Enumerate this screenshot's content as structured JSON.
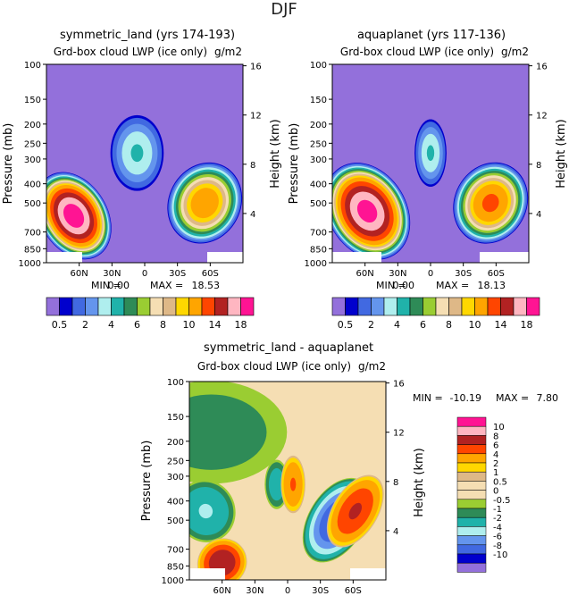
{
  "figure_title": "DJF",
  "colors": {
    "palette": [
      "#9370db",
      "#0000cd",
      "#4169e1",
      "#6495ed",
      "#afeeee",
      "#20b2aa",
      "#2e8b57",
      "#9acd32",
      "#f5deb3",
      "#deb887",
      "#ffd700",
      "#ffa500",
      "#ff4500",
      "#b22222",
      "#ffb6c1",
      "#ff1493"
    ],
    "diff_palette": [
      "#9370db",
      "#0000cd",
      "#4169e1",
      "#6495ed",
      "#afeeee",
      "#20b2aa",
      "#2e8b57",
      "#9acd32",
      "#f5deb3",
      "#deb887",
      "#ffd700",
      "#ffa500",
      "#ff4500",
      "#b22222",
      "#ffb6c1",
      "#ff1493"
    ],
    "land_bar": "#ffffff"
  },
  "chart_data": [
    {
      "id": "symmetric_land",
      "type": "heatmap",
      "title": "symmetric_land (yrs 174-193)",
      "subtitle": "Grd-box cloud LWP (ice only)",
      "units": "g/m2",
      "min_label": "MIN =",
      "min_value": "0.00",
      "max_label": "MAX =",
      "max_value": "18.53",
      "ylabel": "Pressure (mb)",
      "ylabel_right": "Height (km)",
      "pressure_ticks": [
        "100",
        "150",
        "200",
        "250",
        "300",
        "400",
        "500",
        "700",
        "850",
        "1000"
      ],
      "height_ticks": [
        "16",
        "12",
        "8",
        "4"
      ],
      "lat_ticks": [
        "60N",
        "30N",
        "0",
        "30S",
        "60S"
      ],
      "colorbar_levels": [
        "0.5",
        "2",
        "4",
        "6",
        "8",
        "10",
        "14",
        "18"
      ],
      "blobs": [
        {
          "lat": 65,
          "p": 580,
          "peak": 18.5,
          "width_deg": 12,
          "depth_mb": 220,
          "tilt": -0.9
        },
        {
          "lat": -55,
          "p": 500,
          "peak": 11,
          "width_deg": 13,
          "depth_mb": 170,
          "tilt": 0.8
        },
        {
          "lat": 7,
          "p": 280,
          "peak": 4,
          "width_deg": 10,
          "depth_mb": 90,
          "tilt": 0
        }
      ]
    },
    {
      "id": "aquaplanet",
      "type": "heatmap",
      "title": "aquaplanet (yrs 117-136)",
      "subtitle": "Grd-box cloud LWP (ice only)",
      "units": "g/m2",
      "min_label": "MIN =",
      "min_value": "0.00",
      "max_label": "MAX =",
      "max_value": "18.13",
      "ylabel": "Pressure (mb)",
      "ylabel_right": "Height (km)",
      "pressure_ticks": [
        "100",
        "150",
        "200",
        "250",
        "300",
        "400",
        "500",
        "700",
        "850",
        "1000"
      ],
      "height_ticks": [
        "16",
        "12",
        "8",
        "4"
      ],
      "lat_ticks": [
        "60N",
        "30N",
        "0",
        "30S",
        "60S"
      ],
      "colorbar_levels": [
        "0.5",
        "2",
        "4",
        "6",
        "8",
        "10",
        "14",
        "18"
      ],
      "blobs": [
        {
          "lat": 58,
          "p": 550,
          "peak": 18.1,
          "width_deg": 14,
          "depth_mb": 230,
          "tilt": -0.9
        },
        {
          "lat": -55,
          "p": 500,
          "peak": 12,
          "width_deg": 13,
          "depth_mb": 170,
          "tilt": 0.8
        },
        {
          "lat": 0,
          "p": 280,
          "peak": 4,
          "width_deg": 6,
          "depth_mb": 80,
          "tilt": 0
        }
      ]
    },
    {
      "id": "difference",
      "type": "heatmap",
      "title": "symmetric_land - aquaplanet",
      "subtitle": "Grd-box cloud LWP (ice only)",
      "units": "g/m2",
      "min_label": "MIN =",
      "min_value": "-10.19",
      "max_label": "MAX =",
      "max_value": "7.80",
      "ylabel": "Pressure (mb)",
      "ylabel_right": "Height (km)",
      "pressure_ticks": [
        "100",
        "150",
        "200",
        "250",
        "300",
        "400",
        "500",
        "700",
        "850",
        "1000"
      ],
      "height_ticks": [
        "16",
        "12",
        "8",
        "4"
      ],
      "lat_ticks": [
        "60N",
        "30N",
        "0",
        "30S",
        "60S"
      ],
      "colorbar_levels": [
        "10",
        "8",
        "6",
        "4",
        "2",
        "1",
        "0.5",
        "0",
        "-0.5",
        "-1",
        "-2",
        "-4",
        "-6",
        "-8",
        "-10"
      ]
    }
  ]
}
